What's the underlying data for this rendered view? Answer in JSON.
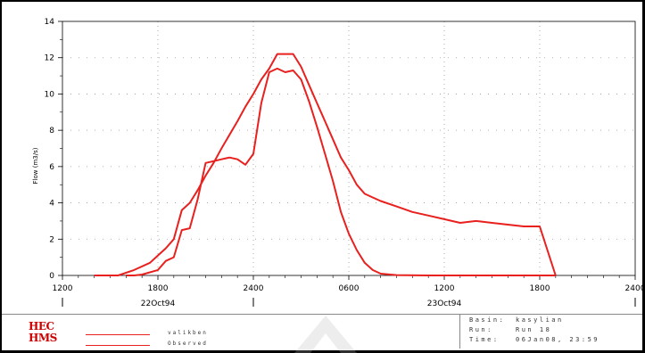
{
  "chart_data": {
    "type": "line",
    "ylabel": "Flow (m3/s)",
    "ylim": [
      0,
      14
    ],
    "yticks": [
      0,
      2,
      4,
      6,
      8,
      10,
      12,
      14
    ],
    "xlim": [
      0,
      36
    ],
    "xticks": [
      {
        "x": 0,
        "label": "1200"
      },
      {
        "x": 6,
        "label": "1800"
      },
      {
        "x": 12,
        "label": "2400"
      },
      {
        "x": 18,
        "label": "0600"
      },
      {
        "x": 24,
        "label": "1200"
      },
      {
        "x": 30,
        "label": "1800"
      },
      {
        "x": 36,
        "label": "2400"
      }
    ],
    "date_labels": [
      {
        "x": 6,
        "label": "22Oct94"
      },
      {
        "x": 24,
        "label": "23Oct94"
      }
    ],
    "grid": true,
    "series": [
      {
        "name": "valikben",
        "color": "#e8201e",
        "points": [
          [
            2,
            0
          ],
          [
            3.5,
            0
          ],
          [
            4.5,
            0.3
          ],
          [
            5.5,
            0.7
          ],
          [
            6,
            1.1
          ],
          [
            6.5,
            1.5
          ],
          [
            7,
            2.0
          ],
          [
            7.5,
            3.6
          ],
          [
            8,
            4.0
          ],
          [
            8.5,
            4.7
          ],
          [
            9,
            5.5
          ],
          [
            9.5,
            6.2
          ],
          [
            10,
            7.0
          ],
          [
            11,
            8.5
          ],
          [
            11.5,
            9.3
          ],
          [
            12,
            10.0
          ],
          [
            12.5,
            10.8
          ],
          [
            13,
            11.4
          ],
          [
            13.5,
            12.2
          ],
          [
            14,
            12.2
          ],
          [
            14.5,
            12.2
          ],
          [
            15,
            11.5
          ],
          [
            15.5,
            10.5
          ],
          [
            16,
            9.5
          ],
          [
            16.5,
            8.5
          ],
          [
            17,
            7.5
          ],
          [
            17.5,
            6.5
          ],
          [
            18,
            5.8
          ],
          [
            18.5,
            5.0
          ],
          [
            19,
            4.5
          ],
          [
            19.5,
            4.3
          ],
          [
            20,
            4.1
          ],
          [
            21,
            3.8
          ],
          [
            22,
            3.5
          ],
          [
            23,
            3.3
          ],
          [
            24,
            3.1
          ],
          [
            25,
            2.9
          ],
          [
            26,
            3.0
          ],
          [
            27,
            2.9
          ],
          [
            28,
            2.8
          ],
          [
            29,
            2.7
          ],
          [
            30,
            2.7
          ],
          [
            31,
            0
          ]
        ]
      },
      {
        "name": "Observed",
        "color": "#e8201e",
        "points": [
          [
            4,
            0
          ],
          [
            4.5,
            0
          ],
          [
            5,
            0.05
          ],
          [
            6,
            0.3
          ],
          [
            6.5,
            0.8
          ],
          [
            7,
            1.0
          ],
          [
            7.5,
            2.5
          ],
          [
            8,
            2.6
          ],
          [
            8.5,
            4.2
          ],
          [
            9,
            6.2
          ],
          [
            9.5,
            6.3
          ],
          [
            10,
            6.4
          ],
          [
            10.5,
            6.5
          ],
          [
            11,
            6.4
          ],
          [
            11.5,
            6.1
          ],
          [
            12,
            6.7
          ],
          [
            12.5,
            9.5
          ],
          [
            13,
            11.2
          ],
          [
            13.5,
            11.4
          ],
          [
            14,
            11.2
          ],
          [
            14.5,
            11.3
          ],
          [
            15,
            10.8
          ],
          [
            15.5,
            9.6
          ],
          [
            16,
            8.2
          ],
          [
            16.5,
            6.7
          ],
          [
            17,
            5.2
          ],
          [
            17.5,
            3.5
          ],
          [
            18,
            2.3
          ],
          [
            18.5,
            1.4
          ],
          [
            19,
            0.7
          ],
          [
            19.5,
            0.3
          ],
          [
            20,
            0.1
          ],
          [
            21,
            0.02
          ],
          [
            23,
            0
          ],
          [
            31,
            0
          ]
        ]
      }
    ]
  },
  "footer": {
    "logo_line1": "HEC",
    "logo_line2": "HMS",
    "legend": [
      {
        "label": "valikben"
      },
      {
        "label": "Observed"
      }
    ],
    "info": {
      "basin_key": "Basin:",
      "basin_value": "kasylian",
      "run_key": "Run:",
      "run_value": "Run 18",
      "time_key": "Time:",
      "time_value": "06Jan08, 23:59"
    }
  }
}
